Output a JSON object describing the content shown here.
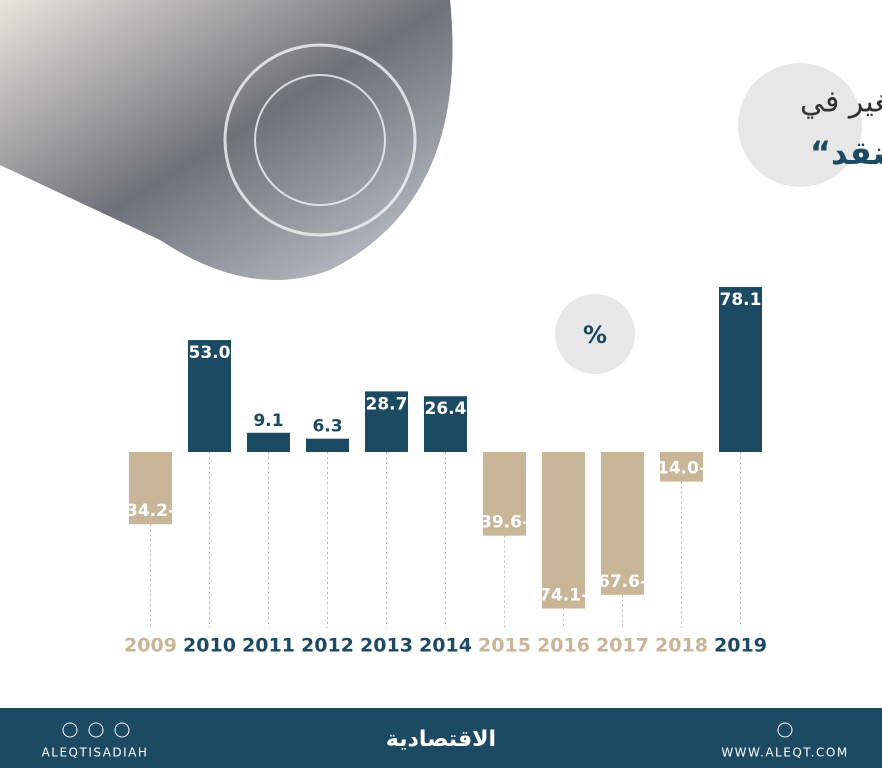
{
  "chart_data": {
    "type": "bar",
    "title": "نسبة التغير في",
    "subtitle": "أذونات ”مؤسسة النقد“",
    "unit": "%",
    "categories": [
      "2009",
      "2010",
      "2011",
      "2012",
      "2013",
      "2014",
      "2015",
      "2016",
      "2017",
      "2018",
      "2019"
    ],
    "values": [
      -34.2,
      53.0,
      9.1,
      6.3,
      28.7,
      26.4,
      -39.6,
      -74.1,
      -67.6,
      -14.0,
      78.1
    ],
    "value_labels": [
      "34.2-",
      "53.0",
      "9.1",
      "6.3",
      "28.7",
      "26.4",
      "39.6-",
      "74.1-",
      "67.6-",
      "14.0-",
      "78.1"
    ],
    "positive_color": "#1d4a63",
    "negative_color": "#c9b597",
    "ylim": [
      -80,
      80
    ]
  },
  "footer": {
    "social": "ALEQTISADIAH",
    "brand": "الاقتصادية",
    "website": "WWW.ALEQT.COM"
  }
}
